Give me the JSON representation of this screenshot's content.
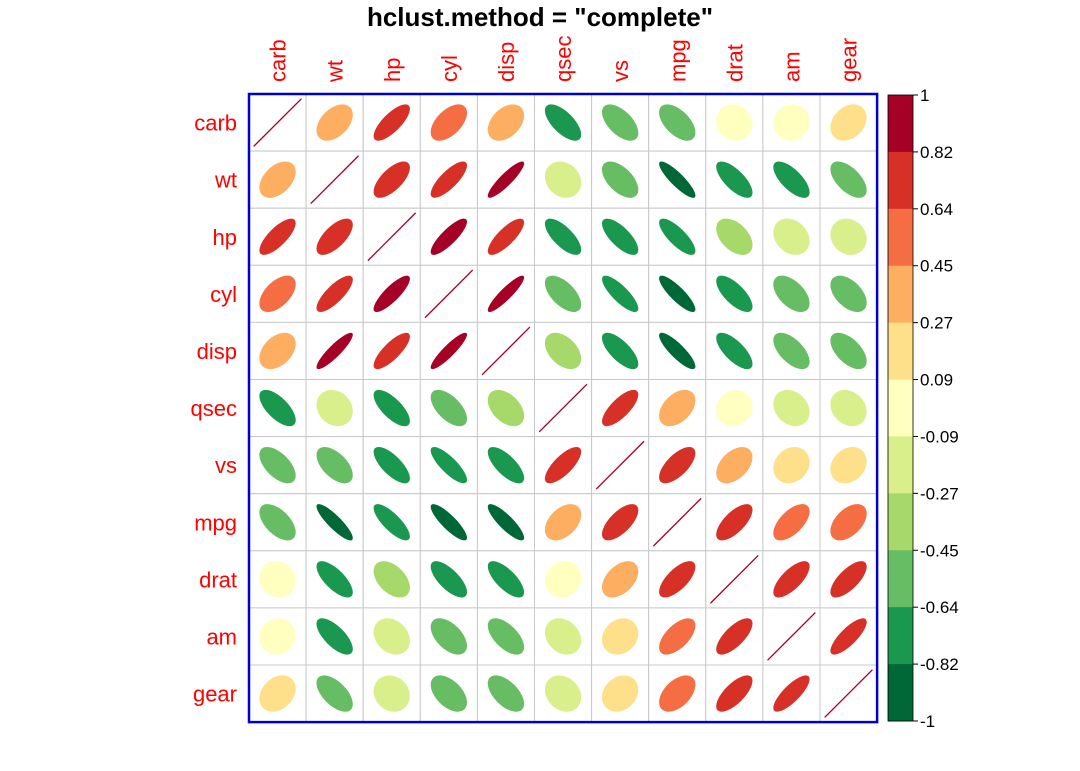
{
  "chart_data": {
    "type": "heatmap",
    "title": "hclust.method = \"complete\"",
    "variables": [
      "carb",
      "wt",
      "hp",
      "cyl",
      "disp",
      "qsec",
      "vs",
      "mpg",
      "drat",
      "am",
      "gear"
    ],
    "values": [
      [
        1.0,
        0.43,
        0.75,
        0.53,
        0.39,
        -0.66,
        -0.57,
        -0.55,
        -0.09,
        0.06,
        0.27
      ],
      [
        0.43,
        1.0,
        0.66,
        0.78,
        0.89,
        -0.17,
        -0.55,
        -0.87,
        -0.71,
        -0.69,
        -0.58
      ],
      [
        0.75,
        0.66,
        1.0,
        0.83,
        0.79,
        -0.71,
        -0.72,
        -0.78,
        -0.45,
        -0.24,
        -0.13
      ],
      [
        0.53,
        0.78,
        0.83,
        1.0,
        0.9,
        -0.59,
        -0.81,
        -0.85,
        -0.7,
        -0.52,
        -0.49
      ],
      [
        0.39,
        0.89,
        0.79,
        0.9,
        1.0,
        -0.43,
        -0.71,
        -0.85,
        -0.71,
        -0.59,
        -0.56
      ],
      [
        -0.66,
        -0.17,
        -0.71,
        -0.59,
        -0.43,
        1.0,
        0.74,
        0.42,
        0.09,
        -0.23,
        -0.21
      ],
      [
        -0.57,
        -0.55,
        -0.72,
        -0.81,
        -0.71,
        0.74,
        1.0,
        0.66,
        0.44,
        0.17,
        0.21
      ],
      [
        -0.55,
        -0.87,
        -0.78,
        -0.85,
        -0.85,
        0.42,
        0.66,
        1.0,
        0.68,
        0.6,
        0.48
      ],
      [
        -0.09,
        -0.71,
        -0.45,
        -0.7,
        -0.71,
        0.09,
        0.44,
        0.68,
        1.0,
        0.71,
        0.7
      ],
      [
        0.06,
        -0.69,
        -0.24,
        -0.52,
        -0.59,
        -0.23,
        0.17,
        0.6,
        0.71,
        1.0,
        0.79
      ],
      [
        0.27,
        -0.58,
        -0.13,
        -0.49,
        -0.56,
        -0.21,
        0.21,
        0.48,
        0.7,
        0.79,
        1.0
      ]
    ],
    "legend": {
      "ticks": [
        "1",
        "0.82",
        "0.64",
        "0.45",
        "0.27",
        "0.09",
        "-0.09",
        "-0.27",
        "-0.45",
        "-0.64",
        "-0.82",
        "-1"
      ],
      "colors_top_to_bottom": [
        "#a50026",
        "#d73027",
        "#f46d43",
        "#fdae61",
        "#fee08b",
        "#ffffbf",
        "#d9ef8b",
        "#a6d96a",
        "#66bd63",
        "#1a9850",
        "#006837"
      ],
      "placement": "right"
    },
    "colors": {
      "label": "#ff0000",
      "border": "#0000cc",
      "grid": "#c8c8c8",
      "diagonal": "#a50026"
    }
  }
}
